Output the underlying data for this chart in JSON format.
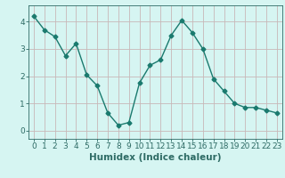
{
  "x": [
    0,
    1,
    2,
    3,
    4,
    5,
    6,
    7,
    8,
    9,
    10,
    11,
    12,
    13,
    14,
    15,
    16,
    17,
    18,
    19,
    20,
    21,
    22,
    23
  ],
  "y": [
    4.2,
    3.7,
    3.45,
    2.75,
    3.2,
    2.05,
    1.65,
    0.65,
    0.2,
    0.3,
    1.75,
    2.4,
    2.6,
    3.5,
    4.05,
    3.6,
    3.0,
    1.9,
    1.45,
    1.0,
    0.85,
    0.85,
    0.75,
    0.65
  ],
  "line_color": "#1a7a6e",
  "marker": "D",
  "marker_size": 2.5,
  "bg_color": "#d6f5f2",
  "grid_color": "#c8b8b8",
  "axis_color": "#2e6b65",
  "tick_color": "#2e6b65",
  "xlabel": "Humidex (Indice chaleur)",
  "ylim": [
    -0.3,
    4.6
  ],
  "xlim": [
    -0.5,
    23.5
  ],
  "yticks": [
    0,
    1,
    2,
    3,
    4
  ],
  "xticks": [
    0,
    1,
    2,
    3,
    4,
    5,
    6,
    7,
    8,
    9,
    10,
    11,
    12,
    13,
    14,
    15,
    16,
    17,
    18,
    19,
    20,
    21,
    22,
    23
  ],
  "tick_label_fontsize": 6.5,
  "xlabel_fontsize": 7.5
}
